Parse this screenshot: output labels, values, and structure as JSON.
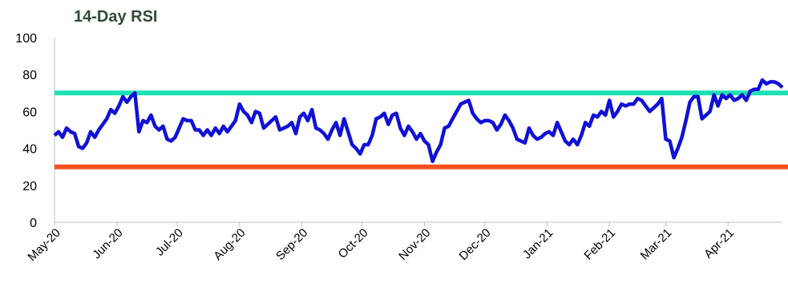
{
  "chart_data": {
    "type": "line",
    "title": "14-Day RSI",
    "xlabel": "",
    "ylabel": "",
    "ylim": [
      0,
      100
    ],
    "yticks": [
      0,
      20,
      40,
      60,
      80,
      100
    ],
    "grid": false,
    "x_tick_labels": [
      "May-20",
      "Jun-20",
      "Jul-20",
      "Aug-20",
      "Sep-20",
      "Oct-20",
      "Nov-20",
      "Dec-20",
      "Jan-21",
      "Feb-21",
      "Mar-21",
      "Apr-21"
    ],
    "reference_lines": [
      {
        "value": 70,
        "color": "#1de0b4"
      },
      {
        "value": 30,
        "color": "#f4511e"
      }
    ],
    "series": [
      {
        "color": "#1010d8",
        "points": [
          [
            "2020-05-01",
            47
          ],
          [
            "2020-05-03",
            49
          ],
          [
            "2020-05-05",
            46
          ],
          [
            "2020-05-07",
            51
          ],
          [
            "2020-05-09",
            49
          ],
          [
            "2020-05-11",
            48
          ],
          [
            "2020-05-13",
            41
          ],
          [
            "2020-05-15",
            40
          ],
          [
            "2020-05-17",
            43
          ],
          [
            "2020-05-19",
            49
          ],
          [
            "2020-05-21",
            46
          ],
          [
            "2020-05-23",
            50
          ],
          [
            "2020-05-25",
            53
          ],
          [
            "2020-05-27",
            56
          ],
          [
            "2020-05-29",
            61
          ],
          [
            "2020-05-31",
            59
          ],
          [
            "2020-06-02",
            63
          ],
          [
            "2020-06-04",
            68
          ],
          [
            "2020-06-06",
            65
          ],
          [
            "2020-06-08",
            68
          ],
          [
            "2020-06-10",
            70
          ],
          [
            "2020-06-12",
            49
          ],
          [
            "2020-06-14",
            55
          ],
          [
            "2020-06-16",
            54
          ],
          [
            "2020-06-18",
            58
          ],
          [
            "2020-06-20",
            52
          ],
          [
            "2020-06-22",
            50
          ],
          [
            "2020-06-24",
            52
          ],
          [
            "2020-06-26",
            45
          ],
          [
            "2020-06-28",
            44
          ],
          [
            "2020-06-30",
            46
          ],
          [
            "2020-07-02",
            51
          ],
          [
            "2020-07-04",
            56
          ],
          [
            "2020-07-06",
            55
          ],
          [
            "2020-07-08",
            55
          ],
          [
            "2020-07-10",
            50
          ],
          [
            "2020-07-12",
            50
          ],
          [
            "2020-07-14",
            47
          ],
          [
            "2020-07-16",
            50
          ],
          [
            "2020-07-18",
            47
          ],
          [
            "2020-07-20",
            51
          ],
          [
            "2020-07-22",
            48
          ],
          [
            "2020-07-24",
            52
          ],
          [
            "2020-07-26",
            49
          ],
          [
            "2020-07-28",
            52
          ],
          [
            "2020-07-30",
            55
          ],
          [
            "2020-08-01",
            64
          ],
          [
            "2020-08-03",
            60
          ],
          [
            "2020-08-05",
            58
          ],
          [
            "2020-08-07",
            54
          ],
          [
            "2020-08-09",
            60
          ],
          [
            "2020-08-11",
            59
          ],
          [
            "2020-08-13",
            51
          ],
          [
            "2020-08-15",
            53
          ],
          [
            "2020-08-17",
            55
          ],
          [
            "2020-08-19",
            57
          ],
          [
            "2020-08-21",
            50
          ],
          [
            "2020-08-23",
            51
          ],
          [
            "2020-08-25",
            52
          ],
          [
            "2020-08-27",
            54
          ],
          [
            "2020-08-29",
            48
          ],
          [
            "2020-08-31",
            57
          ],
          [
            "2020-09-02",
            59
          ],
          [
            "2020-09-04",
            55
          ],
          [
            "2020-09-06",
            61
          ],
          [
            "2020-09-08",
            51
          ],
          [
            "2020-09-10",
            50
          ],
          [
            "2020-09-12",
            48
          ],
          [
            "2020-09-14",
            45
          ],
          [
            "2020-09-16",
            50
          ],
          [
            "2020-09-18",
            54
          ],
          [
            "2020-09-20",
            47
          ],
          [
            "2020-09-22",
            56
          ],
          [
            "2020-09-24",
            49
          ],
          [
            "2020-09-26",
            42
          ],
          [
            "2020-09-28",
            40
          ],
          [
            "2020-09-30",
            37
          ],
          [
            "2020-10-02",
            42
          ],
          [
            "2020-10-04",
            42
          ],
          [
            "2020-10-06",
            47
          ],
          [
            "2020-10-08",
            56
          ],
          [
            "2020-10-10",
            57
          ],
          [
            "2020-10-12",
            59
          ],
          [
            "2020-10-14",
            53
          ],
          [
            "2020-10-16",
            58
          ],
          [
            "2020-10-18",
            59
          ],
          [
            "2020-10-20",
            51
          ],
          [
            "2020-10-22",
            47
          ],
          [
            "2020-10-24",
            52
          ],
          [
            "2020-10-26",
            49
          ],
          [
            "2020-10-28",
            45
          ],
          [
            "2020-10-30",
            48
          ],
          [
            "2020-11-01",
            44
          ],
          [
            "2020-11-03",
            42
          ],
          [
            "2020-11-05",
            33
          ],
          [
            "2020-11-07",
            38
          ],
          [
            "2020-11-09",
            42
          ],
          [
            "2020-11-11",
            51
          ],
          [
            "2020-11-13",
            52
          ],
          [
            "2020-11-15",
            56
          ],
          [
            "2020-11-17",
            60
          ],
          [
            "2020-11-19",
            64
          ],
          [
            "2020-11-21",
            65
          ],
          [
            "2020-11-23",
            66
          ],
          [
            "2020-11-25",
            59
          ],
          [
            "2020-11-27",
            56
          ],
          [
            "2020-11-29",
            54
          ],
          [
            "2020-12-01",
            55
          ],
          [
            "2020-12-03",
            55
          ],
          [
            "2020-12-05",
            54
          ],
          [
            "2020-12-07",
            50
          ],
          [
            "2020-12-09",
            53
          ],
          [
            "2020-12-11",
            58
          ],
          [
            "2020-12-13",
            55
          ],
          [
            "2020-12-15",
            51
          ],
          [
            "2020-12-17",
            45
          ],
          [
            "2020-12-19",
            44
          ],
          [
            "2020-12-21",
            43
          ],
          [
            "2020-12-23",
            51
          ],
          [
            "2020-12-25",
            47
          ],
          [
            "2020-12-27",
            45
          ],
          [
            "2020-12-29",
            46
          ],
          [
            "2020-12-31",
            48
          ],
          [
            "2021-01-02",
            49
          ],
          [
            "2021-01-04",
            47
          ],
          [
            "2021-01-06",
            54
          ],
          [
            "2021-01-08",
            49
          ],
          [
            "2021-01-10",
            44
          ],
          [
            "2021-01-12",
            42
          ],
          [
            "2021-01-14",
            45
          ],
          [
            "2021-01-16",
            42
          ],
          [
            "2021-01-18",
            47
          ],
          [
            "2021-01-20",
            54
          ],
          [
            "2021-01-22",
            52
          ],
          [
            "2021-01-24",
            58
          ],
          [
            "2021-01-26",
            57
          ],
          [
            "2021-01-28",
            60
          ],
          [
            "2021-01-30",
            58
          ],
          [
            "2021-02-01",
            66
          ],
          [
            "2021-02-03",
            57
          ],
          [
            "2021-02-05",
            60
          ],
          [
            "2021-02-07",
            64
          ],
          [
            "2021-02-09",
            63
          ],
          [
            "2021-02-11",
            64
          ],
          [
            "2021-02-13",
            64
          ],
          [
            "2021-02-15",
            67
          ],
          [
            "2021-02-17",
            66
          ],
          [
            "2021-02-19",
            63
          ],
          [
            "2021-02-21",
            60
          ],
          [
            "2021-02-23",
            62
          ],
          [
            "2021-02-25",
            64
          ],
          [
            "2021-02-27",
            67
          ],
          [
            "2021-03-01",
            45
          ],
          [
            "2021-03-03",
            44
          ],
          [
            "2021-03-05",
            35
          ],
          [
            "2021-03-07",
            40
          ],
          [
            "2021-03-09",
            46
          ],
          [
            "2021-03-11",
            55
          ],
          [
            "2021-03-13",
            65
          ],
          [
            "2021-03-15",
            68
          ],
          [
            "2021-03-17",
            68
          ],
          [
            "2021-03-19",
            56
          ],
          [
            "2021-03-21",
            58
          ],
          [
            "2021-03-23",
            60
          ],
          [
            "2021-03-25",
            69
          ],
          [
            "2021-03-27",
            63
          ],
          [
            "2021-03-29",
            69
          ],
          [
            "2021-03-31",
            67
          ],
          [
            "2021-04-02",
            69
          ],
          [
            "2021-04-04",
            66
          ],
          [
            "2021-04-06",
            67
          ],
          [
            "2021-04-08",
            69
          ],
          [
            "2021-04-10",
            66
          ],
          [
            "2021-04-12",
            71
          ],
          [
            "2021-04-14",
            72
          ],
          [
            "2021-04-16",
            72
          ],
          [
            "2021-04-18",
            77
          ],
          [
            "2021-04-20",
            75
          ],
          [
            "2021-04-22",
            76
          ],
          [
            "2021-04-24",
            76
          ],
          [
            "2021-04-26",
            75
          ],
          [
            "2021-04-28",
            73
          ]
        ]
      }
    ]
  }
}
